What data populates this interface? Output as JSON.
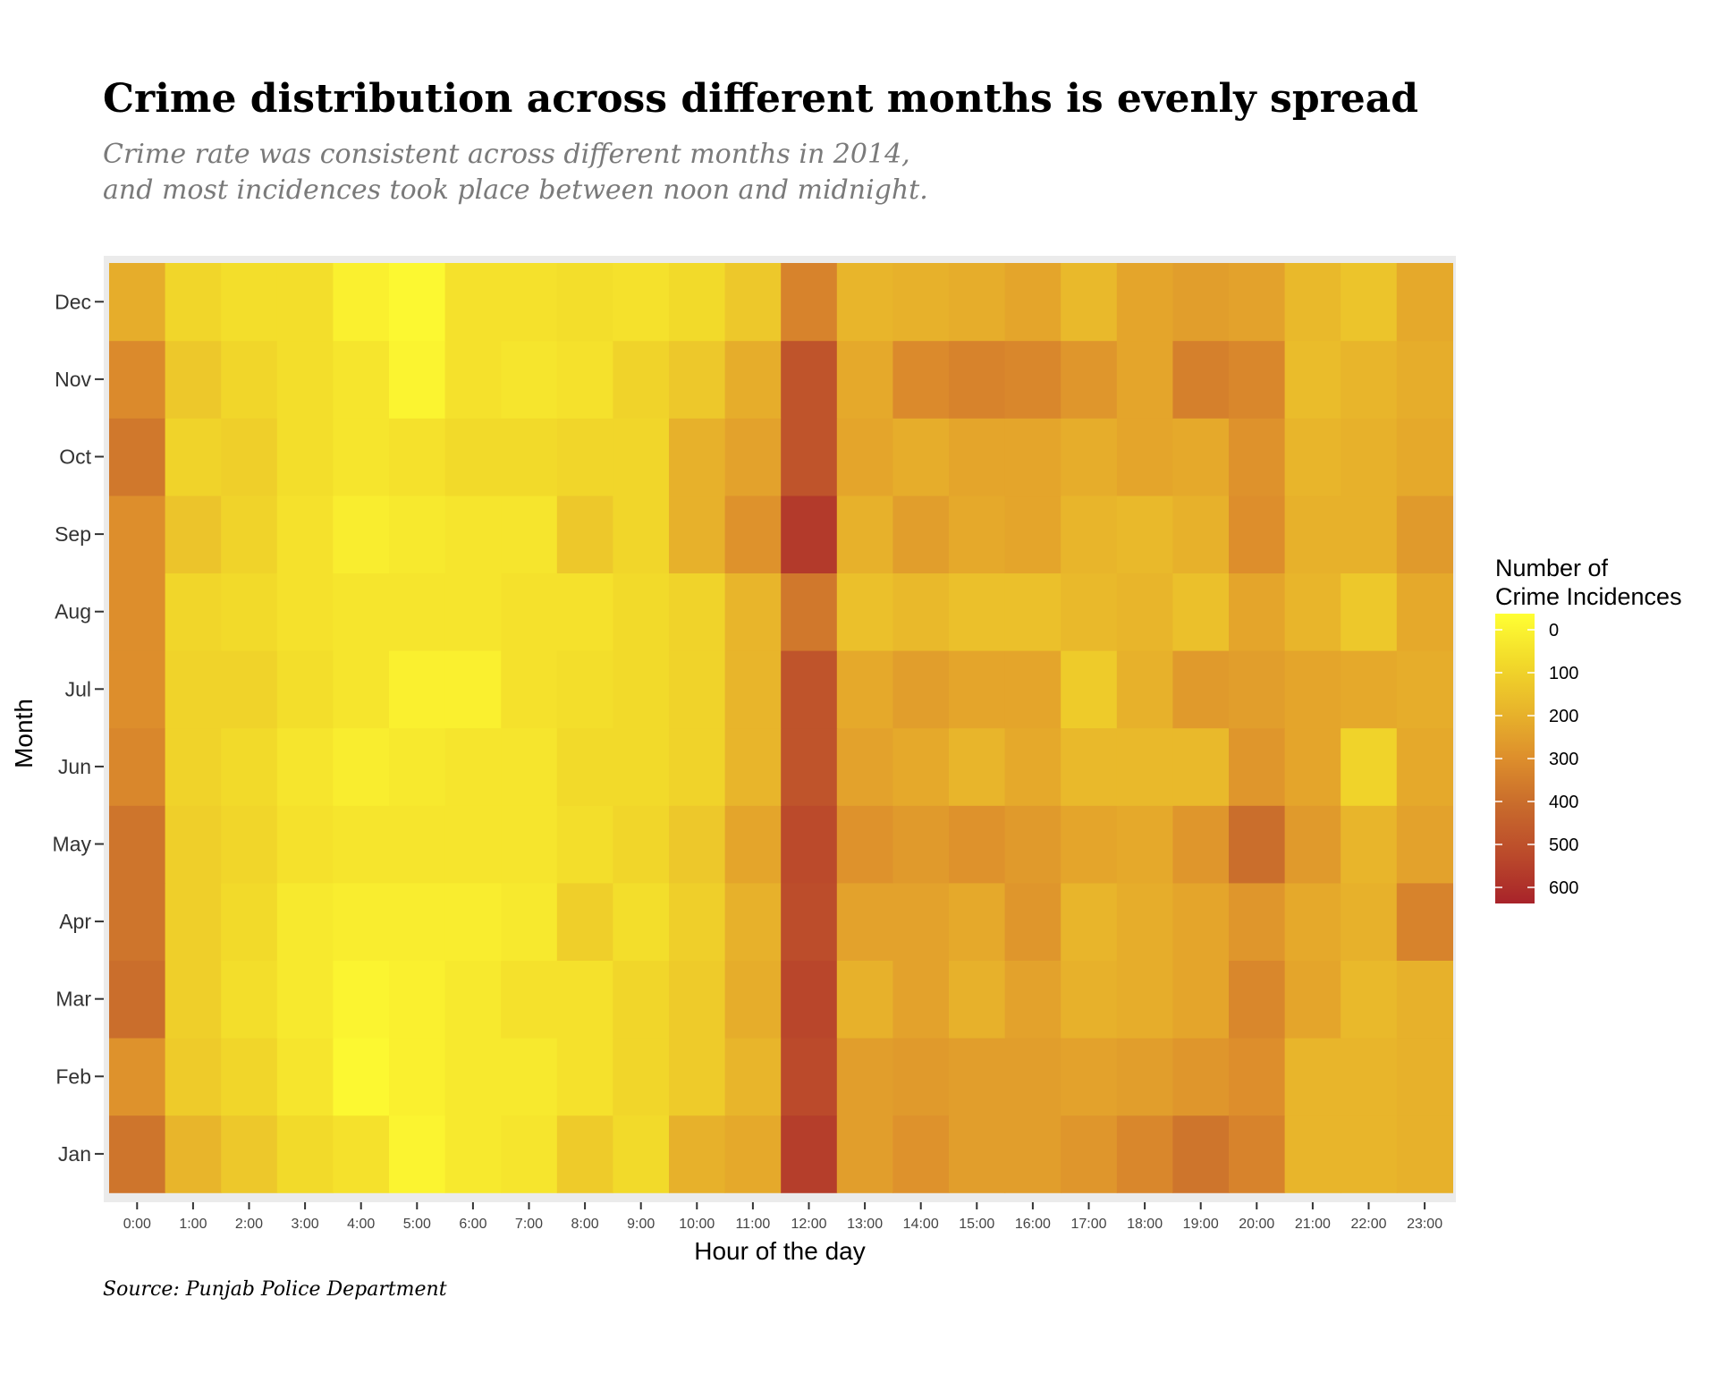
{
  "chart_data": {
    "type": "heatmap",
    "title": "Crime distribution across different months is evenly spread",
    "subtitle_lines": [
      "Crime rate was consistent across different months in 2014,",
      "and most incidences took place between noon and midnight."
    ],
    "caption": "Source: Punjab Police Department",
    "xlabel": "Hour of the day",
    "ylabel": "Month",
    "x": [
      "0:00",
      "1:00",
      "2:00",
      "3:00",
      "4:00",
      "5:00",
      "6:00",
      "7:00",
      "8:00",
      "9:00",
      "10:00",
      "11:00",
      "12:00",
      "13:00",
      "14:00",
      "15:00",
      "16:00",
      "17:00",
      "18:00",
      "19:00",
      "20:00",
      "21:00",
      "22:00",
      "23:00"
    ],
    "y": [
      "Jan",
      "Feb",
      "Mar",
      "Apr",
      "May",
      "Jun",
      "Jul",
      "Aug",
      "Sep",
      "Oct",
      "Nov",
      "Dec"
    ],
    "values": [
      [
        370,
        200,
        150,
        100,
        80,
        30,
        60,
        70,
        140,
        100,
        210,
        230,
        530,
        260,
        290,
        260,
        260,
        280,
        320,
        370,
        330,
        200,
        200,
        210
      ],
      [
        290,
        140,
        110,
        70,
        20,
        40,
        60,
        60,
        80,
        110,
        140,
        200,
        500,
        260,
        270,
        260,
        260,
        250,
        260,
        280,
        300,
        200,
        200,
        210
      ],
      [
        390,
        130,
        90,
        60,
        30,
        40,
        60,
        80,
        80,
        110,
        140,
        220,
        510,
        210,
        250,
        210,
        250,
        210,
        220,
        240,
        320,
        240,
        190,
        210
      ],
      [
        370,
        130,
        100,
        60,
        50,
        50,
        50,
        60,
        130,
        90,
        130,
        210,
        490,
        250,
        250,
        230,
        280,
        200,
        220,
        240,
        280,
        230,
        210,
        330
      ],
      [
        370,
        130,
        110,
        80,
        70,
        70,
        70,
        70,
        90,
        110,
        150,
        240,
        500,
        290,
        270,
        290,
        270,
        240,
        230,
        280,
        390,
        270,
        200,
        250
      ],
      [
        320,
        120,
        100,
        70,
        50,
        60,
        70,
        70,
        100,
        100,
        120,
        200,
        470,
        250,
        230,
        200,
        230,
        190,
        190,
        190,
        280,
        240,
        120,
        230
      ],
      [
        300,
        120,
        120,
        90,
        70,
        40,
        40,
        80,
        90,
        100,
        120,
        200,
        470,
        230,
        260,
        240,
        240,
        140,
        210,
        270,
        260,
        240,
        230,
        220
      ],
      [
        300,
        110,
        100,
        80,
        70,
        70,
        70,
        80,
        80,
        100,
        120,
        200,
        360,
        170,
        190,
        170,
        170,
        190,
        200,
        170,
        240,
        200,
        150,
        230
      ],
      [
        300,
        160,
        120,
        80,
        50,
        60,
        70,
        70,
        150,
        110,
        210,
        290,
        540,
        210,
        260,
        230,
        240,
        200,
        190,
        210,
        300,
        210,
        210,
        270
      ],
      [
        360,
        120,
        130,
        90,
        70,
        80,
        100,
        100,
        110,
        110,
        210,
        250,
        470,
        240,
        220,
        240,
        240,
        220,
        240,
        230,
        290,
        200,
        210,
        230
      ],
      [
        310,
        150,
        110,
        90,
        70,
        30,
        80,
        70,
        80,
        120,
        150,
        220,
        470,
        230,
        310,
        330,
        320,
        280,
        240,
        340,
        320,
        180,
        200,
        220
      ],
      [
        220,
        110,
        90,
        90,
        40,
        20,
        80,
        80,
        90,
        80,
        100,
        150,
        330,
        200,
        210,
        220,
        240,
        190,
        240,
        260,
        250,
        190,
        160,
        230
      ]
    ],
    "legend": {
      "title_lines": [
        "Number of",
        "Crime Incidences"
      ],
      "breaks": [
        0,
        100,
        200,
        300,
        400,
        500,
        600
      ]
    },
    "colors": {
      "low": "#FFFF33",
      "high": "#A8232A",
      "panel_bg": "#EBEBEB",
      "scale": [
        "#FFFF33",
        "#F2DA2A",
        "#E8B52B",
        "#DD8E2C",
        "#C86A2C",
        "#BB4A2B",
        "#A8232A"
      ]
    }
  }
}
